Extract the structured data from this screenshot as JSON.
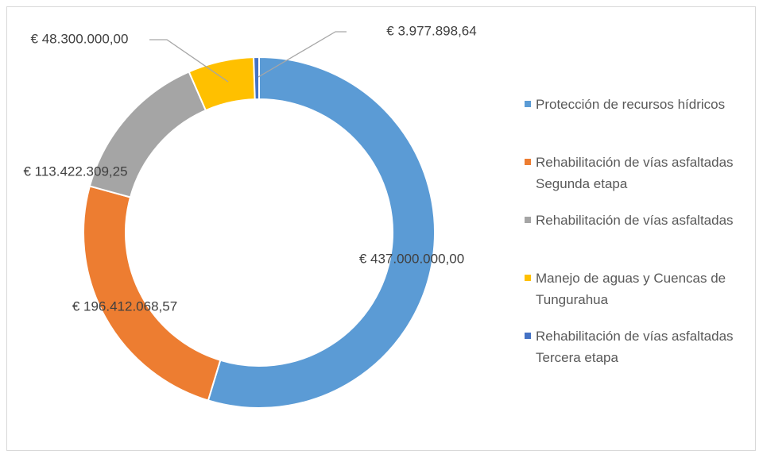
{
  "chart_data": {
    "type": "donut",
    "categories": [
      "Protección de recursos hídricos",
      "Rehabilitación de vías asfaltadas Segunda etapa",
      "Rehabilitación de vías asfaltadas",
      "Manejo de aguas y Cuencas de Tungurahua",
      "Rehabilitación de vías asfaltadas Tercera etapa"
    ],
    "values": [
      437000000,
      196412068.57,
      113422309.25,
      48300000,
      3977898.64
    ],
    "value_labels": [
      "€ 437.000.000,00",
      "€ 196.412.068,57",
      "€ 113.422.309,25",
      "€ 48.300.000,00",
      "€ 3.977.898,64"
    ],
    "colors": [
      "#5b9bd5",
      "#ed7d31",
      "#a5a5a5",
      "#ffc000",
      "#4472c4"
    ],
    "legend": "right"
  }
}
